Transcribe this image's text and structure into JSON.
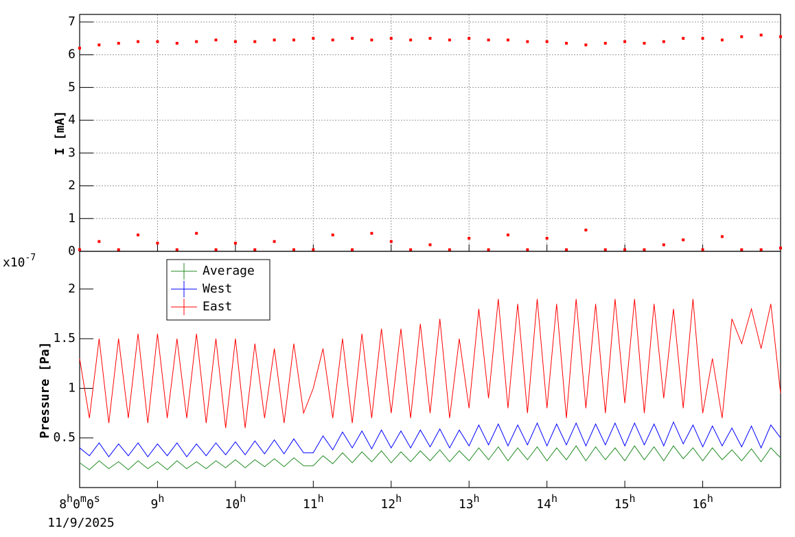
{
  "chart_data": [
    {
      "type": "scatter",
      "ylabel": "I [mA]",
      "xlim": [
        8,
        17
      ],
      "ylim": [
        0,
        7.23
      ],
      "yticks": [
        0,
        1,
        2,
        3,
        4,
        5,
        6,
        7
      ],
      "grid": true,
      "x": [
        8,
        8.25,
        8.5,
        8.75,
        9,
        9.25,
        9.5,
        9.75,
        10,
        10.25,
        10.5,
        10.75,
        11,
        11.25,
        11.5,
        11.75,
        12,
        12.25,
        12.5,
        12.75,
        13,
        13.25,
        13.5,
        13.75,
        14,
        14.25,
        14.5,
        14.75,
        15,
        15.25,
        15.5,
        15.75,
        16,
        16.25,
        16.5,
        16.75,
        17
      ],
      "series": [
        {
          "color": "#ff0000",
          "values": [
            6.2,
            6.3,
            6.35,
            6.4,
            6.4,
            6.35,
            6.4,
            6.45,
            6.4,
            6.4,
            6.45,
            6.45,
            6.5,
            6.45,
            6.5,
            6.45,
            6.5,
            6.45,
            6.5,
            6.45,
            6.5,
            6.45,
            6.45,
            6.4,
            6.4,
            6.35,
            6.3,
            6.35,
            6.4,
            6.35,
            6.4,
            6.5,
            6.5,
            6.45,
            6.55,
            6.6,
            6.55
          ]
        },
        {
          "color": "#ff0000",
          "values": [
            0.05,
            0.3,
            0.05,
            0.5,
            0.25,
            0.05,
            0.55,
            0.05,
            0.25,
            0.05,
            0.3,
            0.05,
            0.05,
            0.5,
            0.05,
            0.55,
            0.3,
            0.05,
            0.2,
            0.05,
            0.4,
            0.05,
            0.5,
            0.05,
            0.4,
            0.05,
            0.65,
            0.05,
            0.05,
            0.05,
            0.2,
            0.35,
            0.05,
            0.45,
            0.05,
            0.05,
            0.1
          ]
        }
      ]
    },
    {
      "type": "line",
      "ylabel": "Pressure [Pa]",
      "y_multiplier": "x10",
      "y_multiplier_exponent": "-7",
      "xlim": [
        8,
        17
      ],
      "ylim": [
        0,
        2.38
      ],
      "yticks": [
        0.5,
        1,
        1.5,
        2
      ],
      "grid": false,
      "xticks": [
        {
          "value": 8,
          "label": "8h0m0s"
        },
        {
          "value": 9,
          "label": "9h"
        },
        {
          "value": 10,
          "label": "10h"
        },
        {
          "value": 11,
          "label": "11h"
        },
        {
          "value": 12,
          "label": "12h"
        },
        {
          "value": 13,
          "label": "13h"
        },
        {
          "value": 14,
          "label": "14h"
        },
        {
          "value": 15,
          "label": "15h"
        },
        {
          "value": 16,
          "label": "16h"
        }
      ],
      "date_label": "11/9/2025",
      "x": [
        8,
        8.125,
        8.25,
        8.375,
        8.5,
        8.625,
        8.75,
        8.875,
        9,
        9.125,
        9.25,
        9.375,
        9.5,
        9.625,
        9.75,
        9.875,
        10,
        10.125,
        10.25,
        10.375,
        10.5,
        10.625,
        10.75,
        10.875,
        11,
        11.125,
        11.25,
        11.375,
        11.5,
        11.625,
        11.75,
        11.875,
        12,
        12.125,
        12.25,
        12.375,
        12.5,
        12.625,
        12.75,
        12.875,
        13,
        13.125,
        13.25,
        13.375,
        13.5,
        13.625,
        13.75,
        13.875,
        14,
        14.125,
        14.25,
        14.375,
        14.5,
        14.625,
        14.75,
        14.875,
        15,
        15.125,
        15.25,
        15.375,
        15.5,
        15.625,
        15.75,
        15.875,
        16,
        16.125,
        16.25,
        16.375,
        16.5,
        16.625,
        16.75,
        16.875,
        17
      ],
      "series": [
        {
          "name": "Average",
          "color": "#228b22",
          "values": [
            0.25,
            0.18,
            0.27,
            0.19,
            0.26,
            0.18,
            0.27,
            0.19,
            0.26,
            0.18,
            0.27,
            0.19,
            0.26,
            0.19,
            0.27,
            0.2,
            0.28,
            0.2,
            0.28,
            0.21,
            0.29,
            0.21,
            0.3,
            0.22,
            0.22,
            0.32,
            0.24,
            0.35,
            0.25,
            0.36,
            0.26,
            0.37,
            0.25,
            0.36,
            0.26,
            0.37,
            0.27,
            0.38,
            0.26,
            0.37,
            0.27,
            0.4,
            0.28,
            0.41,
            0.27,
            0.4,
            0.28,
            0.41,
            0.27,
            0.4,
            0.28,
            0.42,
            0.27,
            0.41,
            0.28,
            0.4,
            0.27,
            0.42,
            0.28,
            0.41,
            0.27,
            0.42,
            0.29,
            0.4,
            0.27,
            0.4,
            0.28,
            0.38,
            0.27,
            0.39,
            0.26,
            0.4,
            0.3
          ]
        },
        {
          "name": "West",
          "color": "#0000ff",
          "values": [
            0.4,
            0.32,
            0.45,
            0.31,
            0.44,
            0.32,
            0.45,
            0.31,
            0.44,
            0.32,
            0.45,
            0.31,
            0.44,
            0.32,
            0.45,
            0.33,
            0.46,
            0.33,
            0.47,
            0.34,
            0.48,
            0.34,
            0.49,
            0.35,
            0.35,
            0.52,
            0.38,
            0.56,
            0.4,
            0.57,
            0.39,
            0.58,
            0.4,
            0.57,
            0.4,
            0.58,
            0.41,
            0.59,
            0.4,
            0.58,
            0.42,
            0.63,
            0.43,
            0.64,
            0.42,
            0.63,
            0.43,
            0.65,
            0.42,
            0.64,
            0.43,
            0.65,
            0.42,
            0.64,
            0.43,
            0.65,
            0.42,
            0.65,
            0.43,
            0.64,
            0.42,
            0.66,
            0.44,
            0.63,
            0.41,
            0.62,
            0.42,
            0.6,
            0.41,
            0.62,
            0.4,
            0.63,
            0.5
          ]
        },
        {
          "name": "East",
          "color": "#ff0000",
          "values": [
            1.3,
            0.7,
            1.5,
            0.65,
            1.5,
            0.7,
            1.55,
            0.65,
            1.55,
            0.7,
            1.5,
            0.7,
            1.55,
            0.65,
            1.5,
            0.6,
            1.5,
            0.6,
            1.45,
            0.7,
            1.4,
            0.65,
            1.45,
            0.75,
            1.0,
            1.4,
            0.7,
            1.5,
            0.65,
            1.55,
            0.7,
            1.6,
            0.75,
            1.6,
            0.7,
            1.65,
            0.75,
            1.7,
            0.7,
            1.5,
            0.8,
            1.8,
            0.9,
            1.9,
            0.8,
            1.85,
            0.75,
            1.9,
            0.8,
            1.85,
            0.7,
            1.9,
            0.8,
            1.85,
            0.75,
            1.9,
            0.85,
            1.9,
            0.75,
            1.85,
            0.9,
            1.8,
            0.8,
            1.9,
            0.75,
            1.3,
            0.7,
            1.7,
            1.45,
            1.8,
            1.4,
            1.85,
            0.95
          ]
        }
      ]
    }
  ]
}
